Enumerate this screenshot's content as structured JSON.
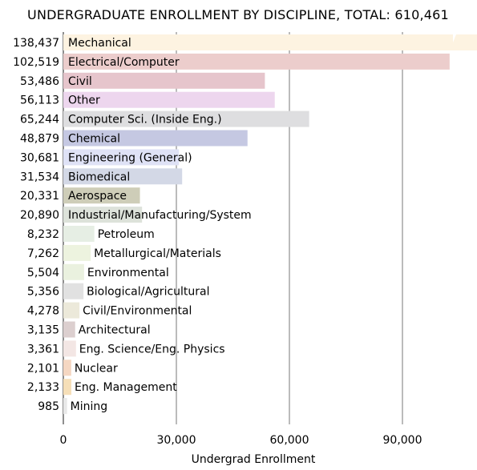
{
  "chart_data": {
    "type": "bar",
    "orientation": "horizontal",
    "title": "UNDERGRADUATE ENROLLMENT BY DISCIPLINE, TOTAL: 610,461",
    "xlabel": "Undergrad Enrollment",
    "ylabel": "",
    "xlim": [
      0,
      110000
    ],
    "x_ticks": [
      0,
      30000,
      60000,
      90000
    ],
    "x_tick_labels": [
      "0",
      "30,000",
      "60,000",
      "90,000"
    ],
    "grid": "vertical",
    "truncated_bar_note": "Mechanical bar exceeds axis range (broken bar)",
    "categories": [
      {
        "label": "Mechanical",
        "value": 138437,
        "value_label": "138,437",
        "color": "#FDF3E1"
      },
      {
        "label": "Electrical/Computer",
        "value": 102519,
        "value_label": "102,519",
        "color": "#ECCDCC"
      },
      {
        "label": "Civil",
        "value": 53486,
        "value_label": "53,486",
        "color": "#E6C5CC"
      },
      {
        "label": "Other",
        "value": 56113,
        "value_label": "56,113",
        "color": "#EDD6EE"
      },
      {
        "label": "Computer Sci. (Inside Eng.)",
        "value": 65244,
        "value_label": "65,244",
        "color": "#DEDEE0"
      },
      {
        "label": "Chemical",
        "value": 48879,
        "value_label": "48,879",
        "color": "#C5C8E2"
      },
      {
        "label": "Engineering (General)",
        "value": 30681,
        "value_label": "30,681",
        "color": "#DFE2F6"
      },
      {
        "label": "Biomedical",
        "value": 31534,
        "value_label": "31,534",
        "color": "#D3D8E6"
      },
      {
        "label": "Aerospace",
        "value": 20331,
        "value_label": "20,331",
        "color": "#CECDB8"
      },
      {
        "label": "Industrial/Manufacturing/System",
        "value": 20890,
        "value_label": "20,890",
        "color": "#DDE2DA"
      },
      {
        "label": "Petroleum",
        "value": 8232,
        "value_label": "8,232",
        "color": "#E6EEE4"
      },
      {
        "label": "Metallurgical/Materials",
        "value": 7262,
        "value_label": "7,262",
        "color": "#EDF3DF"
      },
      {
        "label": "Environmental",
        "value": 5504,
        "value_label": "5,504",
        "color": "#EAF1DF"
      },
      {
        "label": "Biological/Agricultural",
        "value": 5356,
        "value_label": "5,356",
        "color": "#E1E1E1"
      },
      {
        "label": "Civil/Environmental",
        "value": 4278,
        "value_label": "4,278",
        "color": "#ECE9DA"
      },
      {
        "label": "Architectural",
        "value": 3135,
        "value_label": "3,135",
        "color": "#DCCFCF"
      },
      {
        "label": "Eng. Science/Eng. Physics",
        "value": 3361,
        "value_label": "3,361",
        "color": "#F3E6E4"
      },
      {
        "label": "Nuclear",
        "value": 2101,
        "value_label": "2,101",
        "color": "#F5D7C2"
      },
      {
        "label": "Eng. Management",
        "value": 2133,
        "value_label": "2,133",
        "color": "#F6DFB8"
      },
      {
        "label": "Mining",
        "value": 985,
        "value_label": "985",
        "color": "#E8E8E8"
      }
    ]
  }
}
